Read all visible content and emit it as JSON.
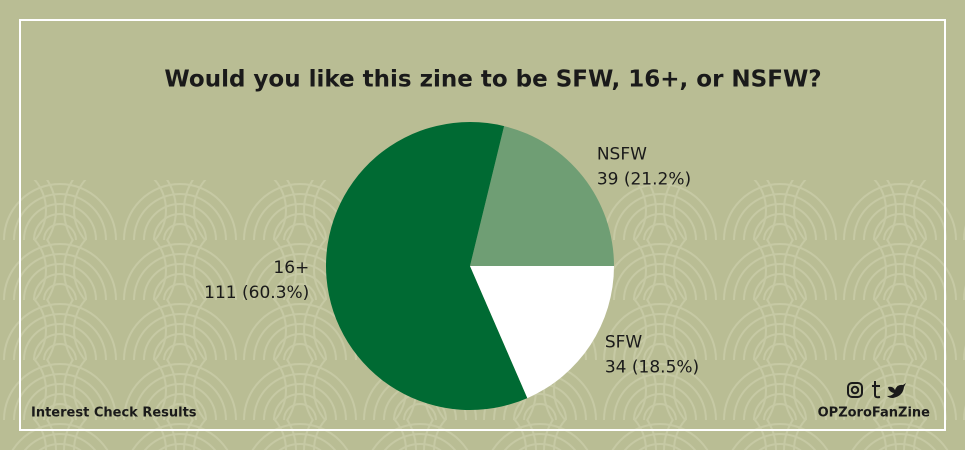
{
  "chart_data": {
    "type": "pie",
    "title": "Would you like this zine to be SFW, 16+, or NSFW?",
    "categories": [
      "NSFW",
      "16+",
      "SFW"
    ],
    "values": [
      39,
      111,
      34
    ],
    "value_labels": [
      "39 (21.2%)",
      "111 (60.3%)",
      "34 (18.5%)"
    ],
    "colors": [
      "#6f9e74",
      "#006a33",
      "#ffffff"
    ]
  },
  "footer": {
    "left": "Interest Check Results",
    "right": "OPZoroFanZine"
  }
}
